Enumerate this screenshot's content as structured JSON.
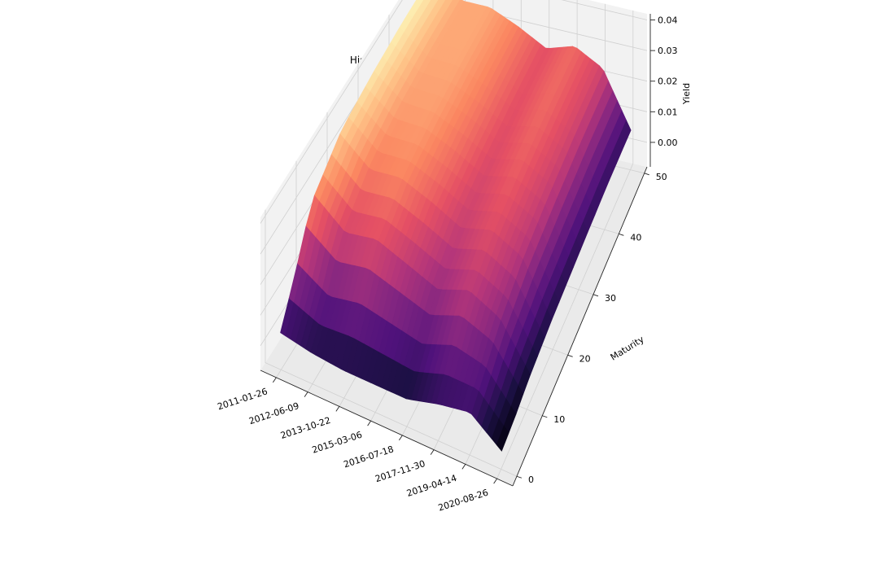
{
  "chart_data": {
    "type": "surface",
    "title": "Historical Yield Curve Term Structure",
    "xlabel": "",
    "ylabel": "Maturity",
    "zlabel": "Yield",
    "x_tick_labels": [
      "2011-01-26",
      "2012-06-09",
      "2013-10-22",
      "2015-03-06",
      "2016-07-18",
      "2017-11-30",
      "2019-04-14",
      "2020-08-26"
    ],
    "y_ticks": [
      0,
      10,
      20,
      30,
      40,
      50
    ],
    "z_ticks": [
      "0.00",
      "0.01",
      "0.02",
      "0.03",
      "0.04"
    ],
    "ylim": [
      0,
      50
    ],
    "zlim": [
      -0.008,
      0.042
    ],
    "grid": true,
    "colormap": "magma",
    "series": [
      {
        "maturities": [
          0,
          5,
          10,
          20,
          30,
          40,
          50
        ],
        "dates": [
          "2011-01-26",
          "2012-06-09",
          "2013-10-22",
          "2015-03-06",
          "2016-07-18",
          "2017-11-30",
          "2019-04-14",
          "2020-08-26"
        ],
        "yield": [
          [
            0.004,
            0.016,
            0.03,
            0.038,
            0.04,
            0.041,
            0.041
          ],
          [
            0.002,
            0.01,
            0.022,
            0.03,
            0.033,
            0.034,
            0.034
          ],
          [
            0.001,
            0.012,
            0.024,
            0.031,
            0.033,
            0.034,
            0.034
          ],
          [
            0.001,
            0.01,
            0.02,
            0.027,
            0.029,
            0.03,
            0.03
          ],
          [
            0.001,
            0.008,
            0.016,
            0.022,
            0.024,
            0.025,
            0.025
          ],
          [
            0.004,
            0.012,
            0.02,
            0.025,
            0.027,
            0.028,
            0.028
          ],
          [
            0.006,
            0.01,
            0.015,
            0.02,
            0.022,
            0.023,
            0.023
          ],
          [
            -0.002,
            -0.001,
            0.001,
            0.003,
            0.004,
            0.005,
            0.005
          ]
        ]
      }
    ]
  }
}
